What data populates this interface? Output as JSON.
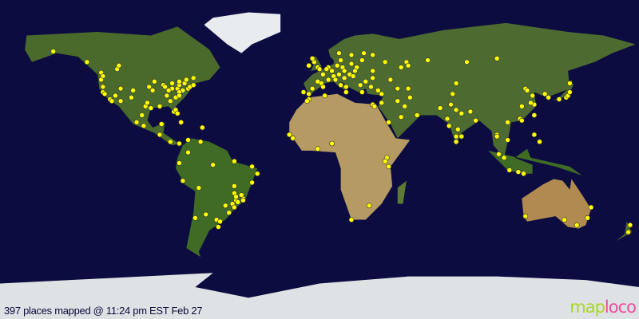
{
  "caption": "397 places mapped @ 11:24 pm EST Feb 27",
  "logo": {
    "part1": "map",
    "part2": "loco"
  },
  "colors": {
    "ocean": "#0c0c40",
    "marker": "#ffff00",
    "logo_map": "#a7d72a",
    "logo_loco": "#ee4c9f"
  },
  "projection": "equirectangular",
  "markers_latlon": [
    [
      49,
      -123
    ],
    [
      47,
      -122
    ],
    [
      45,
      -123
    ],
    [
      41,
      -122
    ],
    [
      38,
      -122
    ],
    [
      37,
      -121
    ],
    [
      34,
      -118
    ],
    [
      33,
      -117
    ],
    [
      36,
      -115
    ],
    [
      33,
      -112
    ],
    [
      40,
      -112
    ],
    [
      39,
      -105
    ],
    [
      35,
      -106
    ],
    [
      30,
      -98
    ],
    [
      32,
      -97
    ],
    [
      29,
      -95
    ],
    [
      30,
      -90
    ],
    [
      33,
      -84
    ],
    [
      35,
      -81
    ],
    [
      36,
      -86
    ],
    [
      39,
      -94
    ],
    [
      41,
      -96
    ],
    [
      44,
      -93
    ],
    [
      42,
      -88
    ],
    [
      41,
      -87
    ],
    [
      43,
      -83
    ],
    [
      40,
      -83
    ],
    [
      39,
      -85
    ],
    [
      40,
      -80
    ],
    [
      42,
      -79
    ],
    [
      43,
      -76
    ],
    [
      40,
      -74
    ],
    [
      41,
      -73
    ],
    [
      42,
      -71
    ],
    [
      39,
      -77
    ],
    [
      38,
      -79
    ],
    [
      36,
      -79
    ],
    [
      27,
      -82
    ],
    [
      28,
      -81
    ],
    [
      26,
      -80
    ],
    [
      45,
      -75
    ],
    [
      44,
      -79
    ],
    [
      46,
      -71
    ],
    [
      51,
      -114
    ],
    [
      53,
      -113
    ],
    [
      19,
      -99
    ],
    [
      21,
      -103
    ],
    [
      20,
      -89
    ],
    [
      25,
      -100
    ],
    [
      14,
      -90
    ],
    [
      10,
      -84
    ],
    [
      9,
      -79
    ],
    [
      18,
      -66
    ],
    [
      21,
      -78
    ],
    [
      11,
      -74
    ],
    [
      10,
      -67
    ],
    [
      4,
      -74
    ],
    [
      -2,
      -79
    ],
    [
      -12,
      -77
    ],
    [
      -16,
      -68
    ],
    [
      -23,
      -47
    ],
    [
      -22,
      -43
    ],
    [
      -20,
      -44
    ],
    [
      -25,
      -49
    ],
    [
      -30,
      -51
    ],
    [
      -27,
      -48
    ],
    [
      -15,
      -48
    ],
    [
      -13,
      -38
    ],
    [
      -8,
      -35
    ],
    [
      -4,
      -38
    ],
    [
      -3,
      -60
    ],
    [
      -1,
      -48
    ],
    [
      -34,
      -58
    ],
    [
      -31,
      -64
    ],
    [
      -33,
      -70
    ],
    [
      -38,
      -57
    ],
    [
      -23,
      -43
    ],
    [
      -19,
      -48
    ],
    [
      -21,
      -47
    ],
    [
      -24,
      -46
    ],
    [
      -26,
      -53
    ],
    [
      -35,
      -56
    ],
    [
      53,
      -6
    ],
    [
      52,
      -1
    ],
    [
      51,
      0
    ],
    [
      55,
      -3
    ],
    [
      57,
      -4
    ],
    [
      48,
      2
    ],
    [
      45,
      5
    ],
    [
      43,
      1
    ],
    [
      44,
      -1
    ],
    [
      40,
      -4
    ],
    [
      41,
      2
    ],
    [
      38,
      -9
    ],
    [
      37,
      -6
    ],
    [
      52,
      5
    ],
    [
      51,
      4
    ],
    [
      50,
      7
    ],
    [
      52,
      13
    ],
    [
      48,
      11
    ],
    [
      53,
      10
    ],
    [
      47,
      8
    ],
    [
      46,
      14
    ],
    [
      45,
      9
    ],
    [
      42,
      12
    ],
    [
      41,
      15
    ],
    [
      38,
      15
    ],
    [
      50,
      14
    ],
    [
      48,
      17
    ],
    [
      47,
      19
    ],
    [
      52,
      21
    ],
    [
      50,
      20
    ],
    [
      54,
      18
    ],
    [
      56,
      24
    ],
    [
      59,
      18
    ],
    [
      60,
      25
    ],
    [
      60,
      11
    ],
    [
      56,
      12
    ],
    [
      59,
      30
    ],
    [
      55,
      37
    ],
    [
      50,
      30
    ],
    [
      46,
      30
    ],
    [
      44,
      26
    ],
    [
      42,
      23
    ],
    [
      38,
      24
    ],
    [
      41,
      29
    ],
    [
      39,
      33
    ],
    [
      37,
      35
    ],
    [
      40,
      44
    ],
    [
      45,
      40
    ],
    [
      52,
      46
    ],
    [
      55,
      49
    ],
    [
      56,
      61
    ],
    [
      55,
      83
    ],
    [
      57,
      100
    ],
    [
      53,
      50
    ],
    [
      40,
      50
    ],
    [
      32,
      35
    ],
    [
      31,
      30
    ],
    [
      30,
      31
    ],
    [
      36,
      3
    ],
    [
      34,
      -6
    ],
    [
      33,
      -7
    ],
    [
      14,
      -17
    ],
    [
      12,
      -15
    ],
    [
      6,
      -1
    ],
    [
      9,
      7
    ],
    [
      1,
      38
    ],
    [
      -1,
      37
    ],
    [
      -4,
      39
    ],
    [
      -26,
      28
    ],
    [
      -34,
      18
    ],
    [
      24,
      46
    ],
    [
      21,
      39
    ],
    [
      25,
      55
    ],
    [
      30,
      48
    ],
    [
      35,
      51
    ],
    [
      33,
      44
    ],
    [
      29,
      68
    ],
    [
      31,
      74
    ],
    [
      28,
      77
    ],
    [
      26,
      80
    ],
    [
      23,
      72
    ],
    [
      19,
      73
    ],
    [
      17,
      78
    ],
    [
      13,
      80
    ],
    [
      13,
      77
    ],
    [
      22,
      88
    ],
    [
      10,
      77
    ],
    [
      27,
      85
    ],
    [
      37,
      75
    ],
    [
      43,
      77
    ],
    [
      40,
      116
    ],
    [
      39,
      117
    ],
    [
      36,
      120
    ],
    [
      31,
      121
    ],
    [
      32,
      119
    ],
    [
      30,
      114
    ],
    [
      23,
      113
    ],
    [
      22,
      114
    ],
    [
      25,
      121
    ],
    [
      37,
      127
    ],
    [
      35,
      129
    ],
    [
      34,
      135
    ],
    [
      35,
      139
    ],
    [
      36,
      140
    ],
    [
      38,
      141
    ],
    [
      43,
      141
    ],
    [
      14,
      100
    ],
    [
      13,
      100
    ],
    [
      11,
      106
    ],
    [
      21,
      106
    ],
    [
      3,
      101
    ],
    [
      1,
      104
    ],
    [
      -6,
      107
    ],
    [
      -7,
      112
    ],
    [
      -8,
      115
    ],
    [
      14,
      121
    ],
    [
      10,
      124
    ],
    [
      -33,
      151
    ],
    [
      -37,
      145
    ],
    [
      -27,
      153
    ],
    [
      -34,
      138
    ],
    [
      -32,
      116
    ],
    [
      -41,
      174
    ],
    [
      -37,
      175
    ],
    [
      55,
      -131
    ],
    [
      61,
      -150
    ]
  ]
}
